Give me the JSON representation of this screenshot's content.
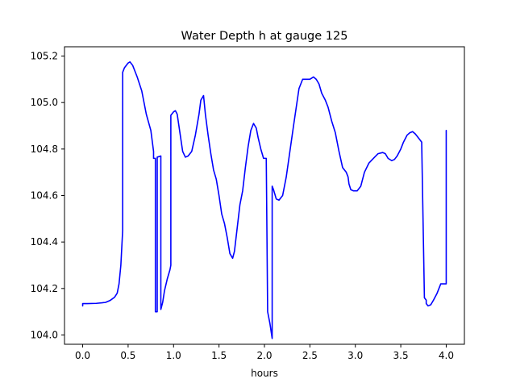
{
  "chart_data": {
    "type": "line",
    "title": "Water Depth h at gauge 125",
    "xlabel": "hours",
    "ylabel": "",
    "xlim": [
      -0.2,
      4.2
    ],
    "ylim": [
      103.96,
      105.24
    ],
    "xticks": [
      0.0,
      0.5,
      1.0,
      1.5,
      2.0,
      2.5,
      3.0,
      3.5,
      4.0
    ],
    "xtick_labels": [
      "0.0",
      "0.5",
      "1.0",
      "1.5",
      "2.0",
      "2.5",
      "3.0",
      "3.5",
      "4.0"
    ],
    "yticks": [
      104.0,
      104.2,
      104.4,
      104.6,
      104.8,
      105.0,
      105.2
    ],
    "ytick_labels": [
      "104.0",
      "104.2",
      "104.4",
      "104.6",
      "104.8",
      "105.0",
      "105.2"
    ],
    "grid": false,
    "series": [
      {
        "color": "#0000ff",
        "x": [
          0.0,
          0.0,
          0.05,
          0.15,
          0.25,
          0.3,
          0.35,
          0.38,
          0.4,
          0.42,
          0.44,
          0.44,
          0.46,
          0.5,
          0.52,
          0.55,
          0.6,
          0.65,
          0.7,
          0.75,
          0.78,
          0.78,
          0.8,
          0.8,
          0.82,
          0.82,
          0.86,
          0.86,
          0.88,
          0.9,
          0.93,
          0.96,
          0.97,
          0.97,
          1.0,
          1.02,
          1.04,
          1.07,
          1.1,
          1.13,
          1.16,
          1.2,
          1.24,
          1.28,
          1.3,
          1.33,
          1.35,
          1.38,
          1.41,
          1.44,
          1.47,
          1.5,
          1.53,
          1.56,
          1.59,
          1.62,
          1.65,
          1.67,
          1.7,
          1.73,
          1.76,
          1.79,
          1.82,
          1.85,
          1.88,
          1.91,
          1.93,
          1.96,
          1.99,
          2.02,
          2.035,
          2.035,
          2.06,
          2.085,
          2.085,
          2.1,
          2.13,
          2.16,
          2.2,
          2.24,
          2.28,
          2.32,
          2.35,
          2.38,
          2.42,
          2.46,
          2.5,
          2.54,
          2.57,
          2.6,
          2.63,
          2.67,
          2.7,
          2.74,
          2.78,
          2.82,
          2.86,
          2.9,
          2.92,
          2.93,
          2.95,
          2.98,
          3.02,
          3.06,
          3.1,
          3.15,
          3.2,
          3.25,
          3.3,
          3.33,
          3.36,
          3.4,
          3.43,
          3.46,
          3.5,
          3.53,
          3.57,
          3.6,
          3.63,
          3.66,
          3.7,
          3.73,
          3.76,
          3.78,
          3.78,
          3.8,
          3.83,
          3.86,
          3.9,
          3.94,
          4.0,
          4.0
        ],
        "y": [
          104.125,
          104.135,
          104.135,
          104.136,
          104.14,
          104.148,
          104.162,
          104.18,
          104.22,
          104.3,
          104.45,
          105.13,
          105.15,
          105.17,
          105.175,
          105.16,
          105.11,
          105.05,
          104.95,
          104.88,
          104.79,
          104.76,
          104.76,
          104.1,
          104.1,
          104.765,
          104.77,
          104.11,
          104.14,
          104.19,
          104.24,
          104.28,
          104.3,
          104.945,
          104.96,
          104.965,
          104.95,
          104.87,
          104.79,
          104.765,
          104.77,
          104.79,
          104.86,
          104.95,
          105.01,
          105.03,
          104.95,
          104.86,
          104.78,
          104.71,
          104.67,
          104.6,
          104.52,
          104.48,
          104.42,
          104.35,
          104.33,
          104.36,
          104.46,
          104.56,
          104.62,
          104.72,
          104.81,
          104.88,
          104.91,
          104.89,
          104.85,
          104.8,
          104.76,
          104.76,
          104.1,
          104.1,
          104.05,
          103.985,
          104.64,
          104.625,
          104.585,
          104.58,
          104.6,
          104.68,
          104.79,
          104.9,
          104.98,
          105.06,
          105.1,
          105.1,
          105.1,
          105.11,
          105.1,
          105.08,
          105.04,
          105.01,
          104.98,
          104.92,
          104.87,
          104.79,
          104.72,
          104.7,
          104.68,
          104.65,
          104.625,
          104.62,
          104.62,
          104.64,
          104.7,
          104.74,
          104.76,
          104.78,
          104.785,
          104.78,
          104.76,
          104.75,
          104.755,
          104.77,
          104.8,
          104.83,
          104.86,
          104.87,
          104.875,
          104.865,
          104.845,
          104.83,
          104.16,
          104.15,
          104.135,
          104.125,
          104.13,
          104.15,
          104.18,
          104.22,
          104.22,
          104.88
        ]
      }
    ]
  }
}
